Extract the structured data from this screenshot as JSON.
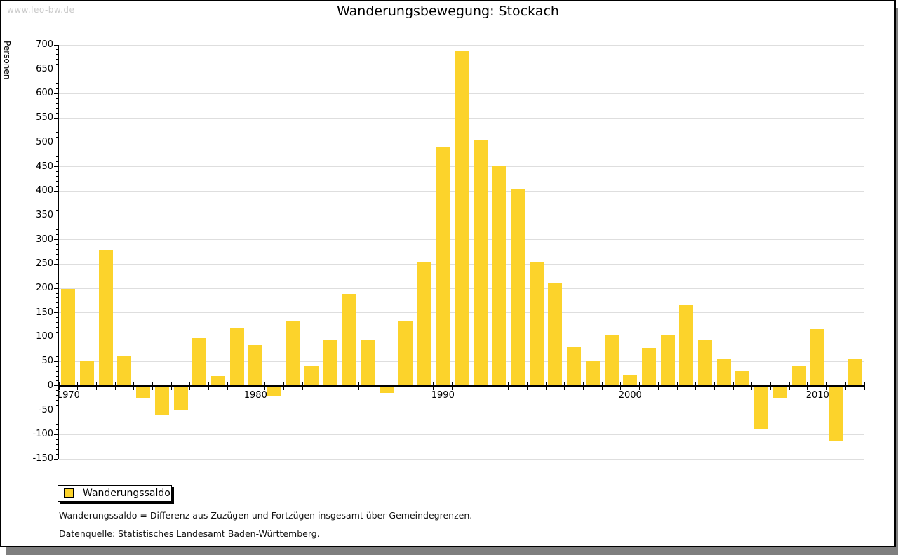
{
  "watermark": "www.leo-bw.de",
  "title": "Wanderungsbewegung: Stockach",
  "ylabel": "Personen",
  "legend": {
    "label": "Wanderungssaldo"
  },
  "footnotes": [
    "Wanderungssaldo = Differenz aus Zuzügen und Fortzügen insgesamt über Gemeindegrenzen.",
    "Datenquelle: Statistisches Landesamt Baden-Württemberg."
  ],
  "colors": {
    "bar": "#FCD32B",
    "grid": "#DEDEDE",
    "axis": "#000000",
    "watermark": "#CBCBCB",
    "shadow": "#7F7F7F"
  },
  "chart_data": {
    "type": "bar",
    "title": "Wanderungsbewegung: Stockach",
    "ylabel": "Personen",
    "series_name": "Wanderungssaldo",
    "x": [
      1970,
      1971,
      1972,
      1973,
      1974,
      1975,
      1976,
      1977,
      1978,
      1979,
      1980,
      1981,
      1982,
      1983,
      1984,
      1985,
      1986,
      1987,
      1988,
      1989,
      1990,
      1991,
      1992,
      1993,
      1994,
      1995,
      1996,
      1997,
      1998,
      1999,
      2000,
      2001,
      2002,
      2003,
      2004,
      2005,
      2006,
      2007,
      2008,
      2009,
      2010,
      2011,
      2012
    ],
    "values": [
      198,
      50,
      280,
      62,
      -25,
      -59,
      -50,
      98,
      20,
      120,
      84,
      -21,
      133,
      40,
      95,
      188,
      95,
      -15,
      132,
      253,
      489,
      687,
      506,
      452,
      405,
      253,
      210,
      79,
      52,
      103,
      22,
      78,
      105,
      165,
      93,
      55,
      30,
      -90,
      -25,
      40,
      116,
      -113,
      55
    ],
    "ylim": [
      -150,
      700
    ],
    "ytick_step": 50,
    "ytick_minor_step": 10,
    "xtick_labels": [
      1970,
      1980,
      1990,
      2000,
      2010
    ],
    "grid": true,
    "legend_position": "bottom-left"
  }
}
